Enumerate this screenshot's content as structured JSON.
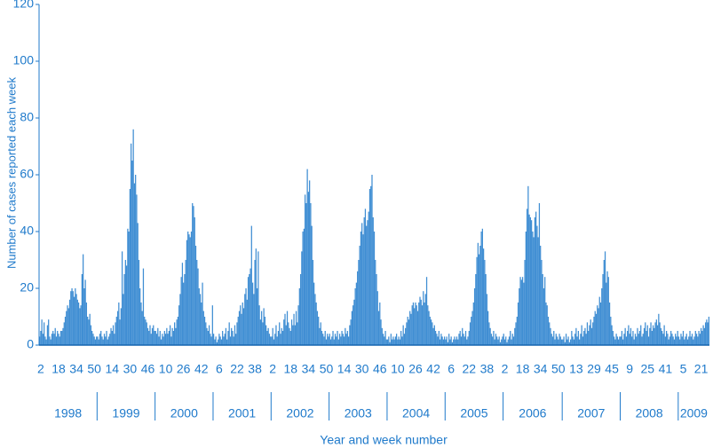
{
  "chart_data": {
    "type": "bar",
    "y_label": "Number of cases reported each week",
    "x_label": "Year and week number",
    "color": "#1f7acb",
    "ylim": [
      0,
      120
    ],
    "yticks": [
      0,
      20,
      40,
      60,
      80,
      100,
      120
    ],
    "years": [
      "1998",
      "1999",
      "2000",
      "2001",
      "2002",
      "2003",
      "2004",
      "2005",
      "2006",
      "2007",
      "2008",
      "2009"
    ],
    "categories": [
      null,
      "2",
      null,
      null,
      null,
      null,
      null,
      null,
      null,
      null,
      null,
      null,
      null,
      null,
      null,
      null,
      null,
      "18",
      null,
      null,
      null,
      null,
      null,
      null,
      null,
      null,
      null,
      null,
      null,
      null,
      null,
      null,
      null,
      "34",
      null,
      null,
      null,
      null,
      null,
      null,
      null,
      null,
      null,
      null,
      null,
      null,
      null,
      null,
      null,
      "50",
      null,
      null,
      null,
      null,
      null,
      null,
      null,
      null,
      null,
      null,
      null,
      null,
      null,
      null,
      null,
      "14",
      null,
      null,
      null,
      null,
      null,
      null,
      null,
      null,
      null,
      null,
      null,
      null,
      null,
      null,
      null,
      "30",
      null,
      null,
      null,
      null,
      null,
      null,
      null,
      null,
      null,
      null,
      null,
      null,
      null,
      null,
      null,
      "46",
      null,
      null,
      null,
      null,
      null,
      null,
      null,
      null,
      null,
      null,
      null,
      null,
      null,
      null,
      null,
      "10",
      null,
      null,
      null,
      null,
      null,
      null,
      null,
      null,
      null,
      null,
      null,
      null,
      null,
      null,
      null,
      "26",
      null,
      null,
      null,
      null,
      null,
      null,
      null,
      null,
      null,
      null,
      null,
      null,
      null,
      null,
      null,
      "42",
      null,
      null,
      null,
      null,
      null,
      null,
      null,
      null,
      null,
      null,
      null,
      null,
      null,
      null,
      null,
      "6",
      null,
      null,
      null,
      null,
      null,
      null,
      null,
      null,
      null,
      null,
      null,
      null,
      null,
      null,
      null,
      "22",
      null,
      null,
      null,
      null,
      null,
      null,
      null,
      null,
      null,
      null,
      null,
      null,
      null,
      null,
      null,
      "38",
      null,
      null,
      null,
      null,
      null,
      null,
      null,
      null,
      null,
      null,
      null,
      null,
      null,
      null,
      null,
      "2",
      null,
      null,
      null,
      null,
      null,
      null,
      null,
      null,
      null,
      null,
      null,
      null,
      null,
      null,
      null,
      "18",
      null,
      null,
      null,
      null,
      null,
      null,
      null,
      null,
      null,
      null,
      null,
      null,
      null,
      null,
      null,
      "34",
      null,
      null,
      null,
      null,
      null,
      null,
      null,
      null,
      null,
      null,
      null,
      null,
      null,
      null,
      null,
      "50",
      null,
      null,
      null,
      null,
      null,
      null,
      null,
      null,
      null,
      null,
      null,
      null,
      null,
      null,
      null,
      "14",
      null,
      null,
      null,
      null,
      null,
      null,
      null,
      null,
      null,
      null,
      null,
      null,
      null,
      null,
      null,
      "30",
      null,
      null,
      null,
      null,
      null,
      null,
      null,
      null,
      null,
      null,
      null,
      null,
      null,
      null,
      null,
      "46",
      null,
      null,
      null,
      null,
      null,
      null,
      null,
      null,
      null,
      null,
      null,
      null,
      null,
      null,
      null,
      "10",
      null,
      null,
      null,
      null,
      null,
      null,
      null,
      null,
      null,
      null,
      null,
      null,
      null,
      null,
      null,
      "26",
      null,
      null,
      null,
      null,
      null,
      null,
      null,
      null,
      null,
      null,
      null,
      null,
      null,
      null,
      null,
      "42",
      null,
      null,
      null,
      null,
      null,
      null,
      null,
      null,
      null,
      null,
      null,
      null,
      null,
      null,
      null,
      "6",
      null,
      null,
      null,
      null,
      null,
      null,
      null,
      null,
      null,
      null,
      null,
      null,
      null,
      null,
      null,
      "22",
      null,
      null,
      null,
      null,
      null,
      null,
      null,
      null,
      null,
      null,
      null,
      null,
      null,
      null,
      null,
      "38",
      null,
      null,
      null,
      null,
      null,
      null,
      null,
      null,
      null,
      null,
      null,
      null,
      null,
      null,
      null,
      "2",
      null,
      null,
      null,
      null,
      null,
      null,
      null,
      null,
      null,
      null,
      null,
      null,
      null,
      null,
      null,
      "18",
      null,
      null,
      null,
      null,
      null,
      null,
      null,
      null,
      null,
      null,
      null,
      null,
      null,
      null,
      null,
      "34",
      null,
      null,
      null,
      null,
      null,
      null,
      null,
      null,
      null,
      null,
      null,
      null,
      null,
      null,
      null,
      "50",
      null,
      null,
      null,
      null,
      null,
      null,
      null,
      null,
      null,
      null,
      null,
      null,
      null,
      null,
      null,
      "13",
      null,
      null,
      null,
      null,
      null,
      null,
      null,
      null,
      null,
      null,
      null,
      null,
      null,
      null,
      null,
      "29",
      null,
      null,
      null,
      null,
      null,
      null,
      null,
      null,
      null,
      null,
      null,
      null,
      null,
      null,
      null,
      "45",
      null,
      null,
      null,
      null,
      null,
      null,
      null,
      null,
      null,
      null,
      null,
      null,
      null,
      null,
      null,
      "9",
      null,
      null,
      null,
      null,
      null,
      null,
      null,
      null,
      null,
      null,
      null,
      null,
      null,
      null,
      null,
      "25",
      null,
      null,
      null,
      null,
      null,
      null,
      null,
      null,
      null,
      null,
      null,
      null,
      null,
      null,
      null,
      "41",
      null,
      null,
      null,
      null,
      null,
      null,
      null,
      null,
      null,
      null,
      null,
      null,
      null,
      null,
      null,
      "5",
      null,
      null,
      null,
      null,
      null,
      null,
      null,
      null,
      null,
      null,
      null,
      null,
      null,
      null,
      null,
      "21",
      null,
      null,
      null,
      null,
      null,
      null,
      null
    ],
    "values": [
      3,
      5,
      9,
      4,
      8,
      3,
      2,
      7,
      9,
      3,
      2,
      4,
      5,
      4,
      6,
      3,
      5,
      4,
      3,
      5,
      5,
      6,
      8,
      10,
      12,
      14,
      13,
      16,
      19,
      20,
      19,
      17,
      20,
      18,
      16,
      15,
      13,
      14,
      25,
      32,
      20,
      23,
      15,
      10,
      9,
      11,
      7,
      5,
      4,
      3,
      2,
      3,
      3,
      2,
      4,
      5,
      3,
      2,
      4,
      3,
      5,
      2,
      3,
      4,
      6,
      5,
      7,
      4,
      8,
      10,
      12,
      15,
      9,
      13,
      33,
      18,
      25,
      30,
      28,
      41,
      40,
      55,
      71,
      65,
      76,
      57,
      60,
      53,
      43,
      30,
      20,
      15,
      12,
      27,
      10,
      9,
      8,
      6,
      5,
      7,
      4,
      6,
      7,
      5,
      5,
      4,
      6,
      3,
      5,
      2,
      4,
      3,
      5,
      4,
      6,
      4,
      5,
      7,
      3,
      6,
      5,
      8,
      6,
      9,
      10,
      14,
      18,
      24,
      29,
      22,
      25,
      30,
      37,
      40,
      39,
      38,
      40,
      50,
      49,
      45,
      35,
      30,
      27,
      20,
      18,
      15,
      22,
      12,
      10,
      8,
      6,
      5,
      7,
      4,
      3,
      14,
      4,
      2,
      3,
      1,
      2,
      4,
      3,
      2,
      5,
      3,
      4,
      6,
      2,
      5,
      8,
      3,
      6,
      5,
      3,
      7,
      4,
      8,
      10,
      12,
      14,
      11,
      15,
      13,
      18,
      20,
      16,
      24,
      25,
      27,
      42,
      22,
      18,
      30,
      34,
      20,
      33,
      14,
      9,
      12,
      8,
      13,
      10,
      7,
      5,
      6,
      4,
      3,
      3,
      6,
      2,
      4,
      7,
      3,
      5,
      8,
      4,
      6,
      5,
      9,
      11,
      7,
      12,
      8,
      6,
      5,
      9,
      7,
      11,
      7,
      12,
      8,
      14,
      20,
      25,
      33,
      40,
      41,
      53,
      50,
      62,
      54,
      58,
      50,
      42,
      30,
      22,
      18,
      15,
      12,
      10,
      6,
      8,
      5,
      4,
      3,
      5,
      2,
      4,
      3,
      4,
      2,
      3,
      5,
      2,
      4,
      3,
      5,
      2,
      4,
      3,
      5,
      4,
      3,
      6,
      4,
      5,
      3,
      7,
      9,
      12,
      14,
      16,
      20,
      22,
      26,
      30,
      35,
      40,
      43,
      39,
      45,
      48,
      42,
      44,
      47,
      55,
      56,
      60,
      45,
      40,
      30,
      25,
      19,
      12,
      15,
      9,
      6,
      4,
      3,
      5,
      2,
      2,
      3,
      1,
      4,
      2,
      3,
      2,
      3,
      4,
      2,
      3,
      2,
      5,
      3,
      7,
      4,
      6,
      8,
      10,
      9,
      12,
      11,
      14,
      15,
      13,
      15,
      14,
      12,
      15,
      17,
      16,
      14,
      19,
      15,
      18,
      24,
      14,
      12,
      10,
      9,
      8,
      6,
      7,
      5,
      4,
      3,
      5,
      2,
      4,
      3,
      2,
      3,
      2,
      3,
      1,
      4,
      2,
      3,
      1,
      2,
      3,
      2,
      3,
      2,
      4,
      5,
      3,
      6,
      4,
      3,
      5,
      2,
      3,
      5,
      8,
      10,
      12,
      15,
      20,
      25,
      31,
      36,
      32,
      35,
      40,
      41,
      34,
      30,
      25,
      18,
      12,
      8,
      6,
      4,
      3,
      5,
      2,
      4,
      3,
      2,
      3,
      1,
      2,
      3,
      4,
      2,
      3,
      1,
      2,
      3,
      5,
      2,
      4,
      3,
      6,
      8,
      10,
      15,
      20,
      24,
      23,
      24,
      22,
      30,
      40,
      48,
      56,
      46,
      45,
      44,
      40,
      38,
      45,
      47,
      42,
      38,
      50,
      35,
      30,
      25,
      20,
      24,
      15,
      14,
      10,
      8,
      6,
      4,
      3,
      5,
      2,
      4,
      3,
      2,
      4,
      3,
      2,
      2,
      3,
      1,
      4,
      2,
      3,
      1,
      2,
      5,
      3,
      2,
      4,
      6,
      3,
      5,
      2,
      4,
      7,
      3,
      5,
      6,
      4,
      8,
      5,
      7,
      9,
      6,
      8,
      10,
      12,
      11,
      14,
      13,
      17,
      15,
      20,
      25,
      30,
      33,
      22,
      26,
      24,
      15,
      10,
      7,
      5,
      3,
      2,
      4,
      3,
      2,
      3,
      3,
      5,
      2,
      4,
      6,
      3,
      5,
      7,
      4,
      6,
      3,
      5,
      2,
      4,
      3,
      6,
      4,
      5,
      7,
      3,
      4,
      6,
      8,
      5,
      7,
      3,
      6,
      8,
      5,
      7,
      6,
      8,
      9,
      7,
      11,
      8,
      6,
      5,
      4,
      7,
      3,
      5,
      4,
      2,
      3,
      5,
      4,
      3,
      2,
      4,
      3,
      5,
      3,
      2,
      4,
      3,
      5,
      2,
      3,
      4,
      2,
      3,
      5,
      3,
      4,
      2,
      3,
      5,
      4,
      3,
      5,
      4,
      6,
      5,
      7,
      6,
      8,
      9,
      8,
      10
    ]
  }
}
